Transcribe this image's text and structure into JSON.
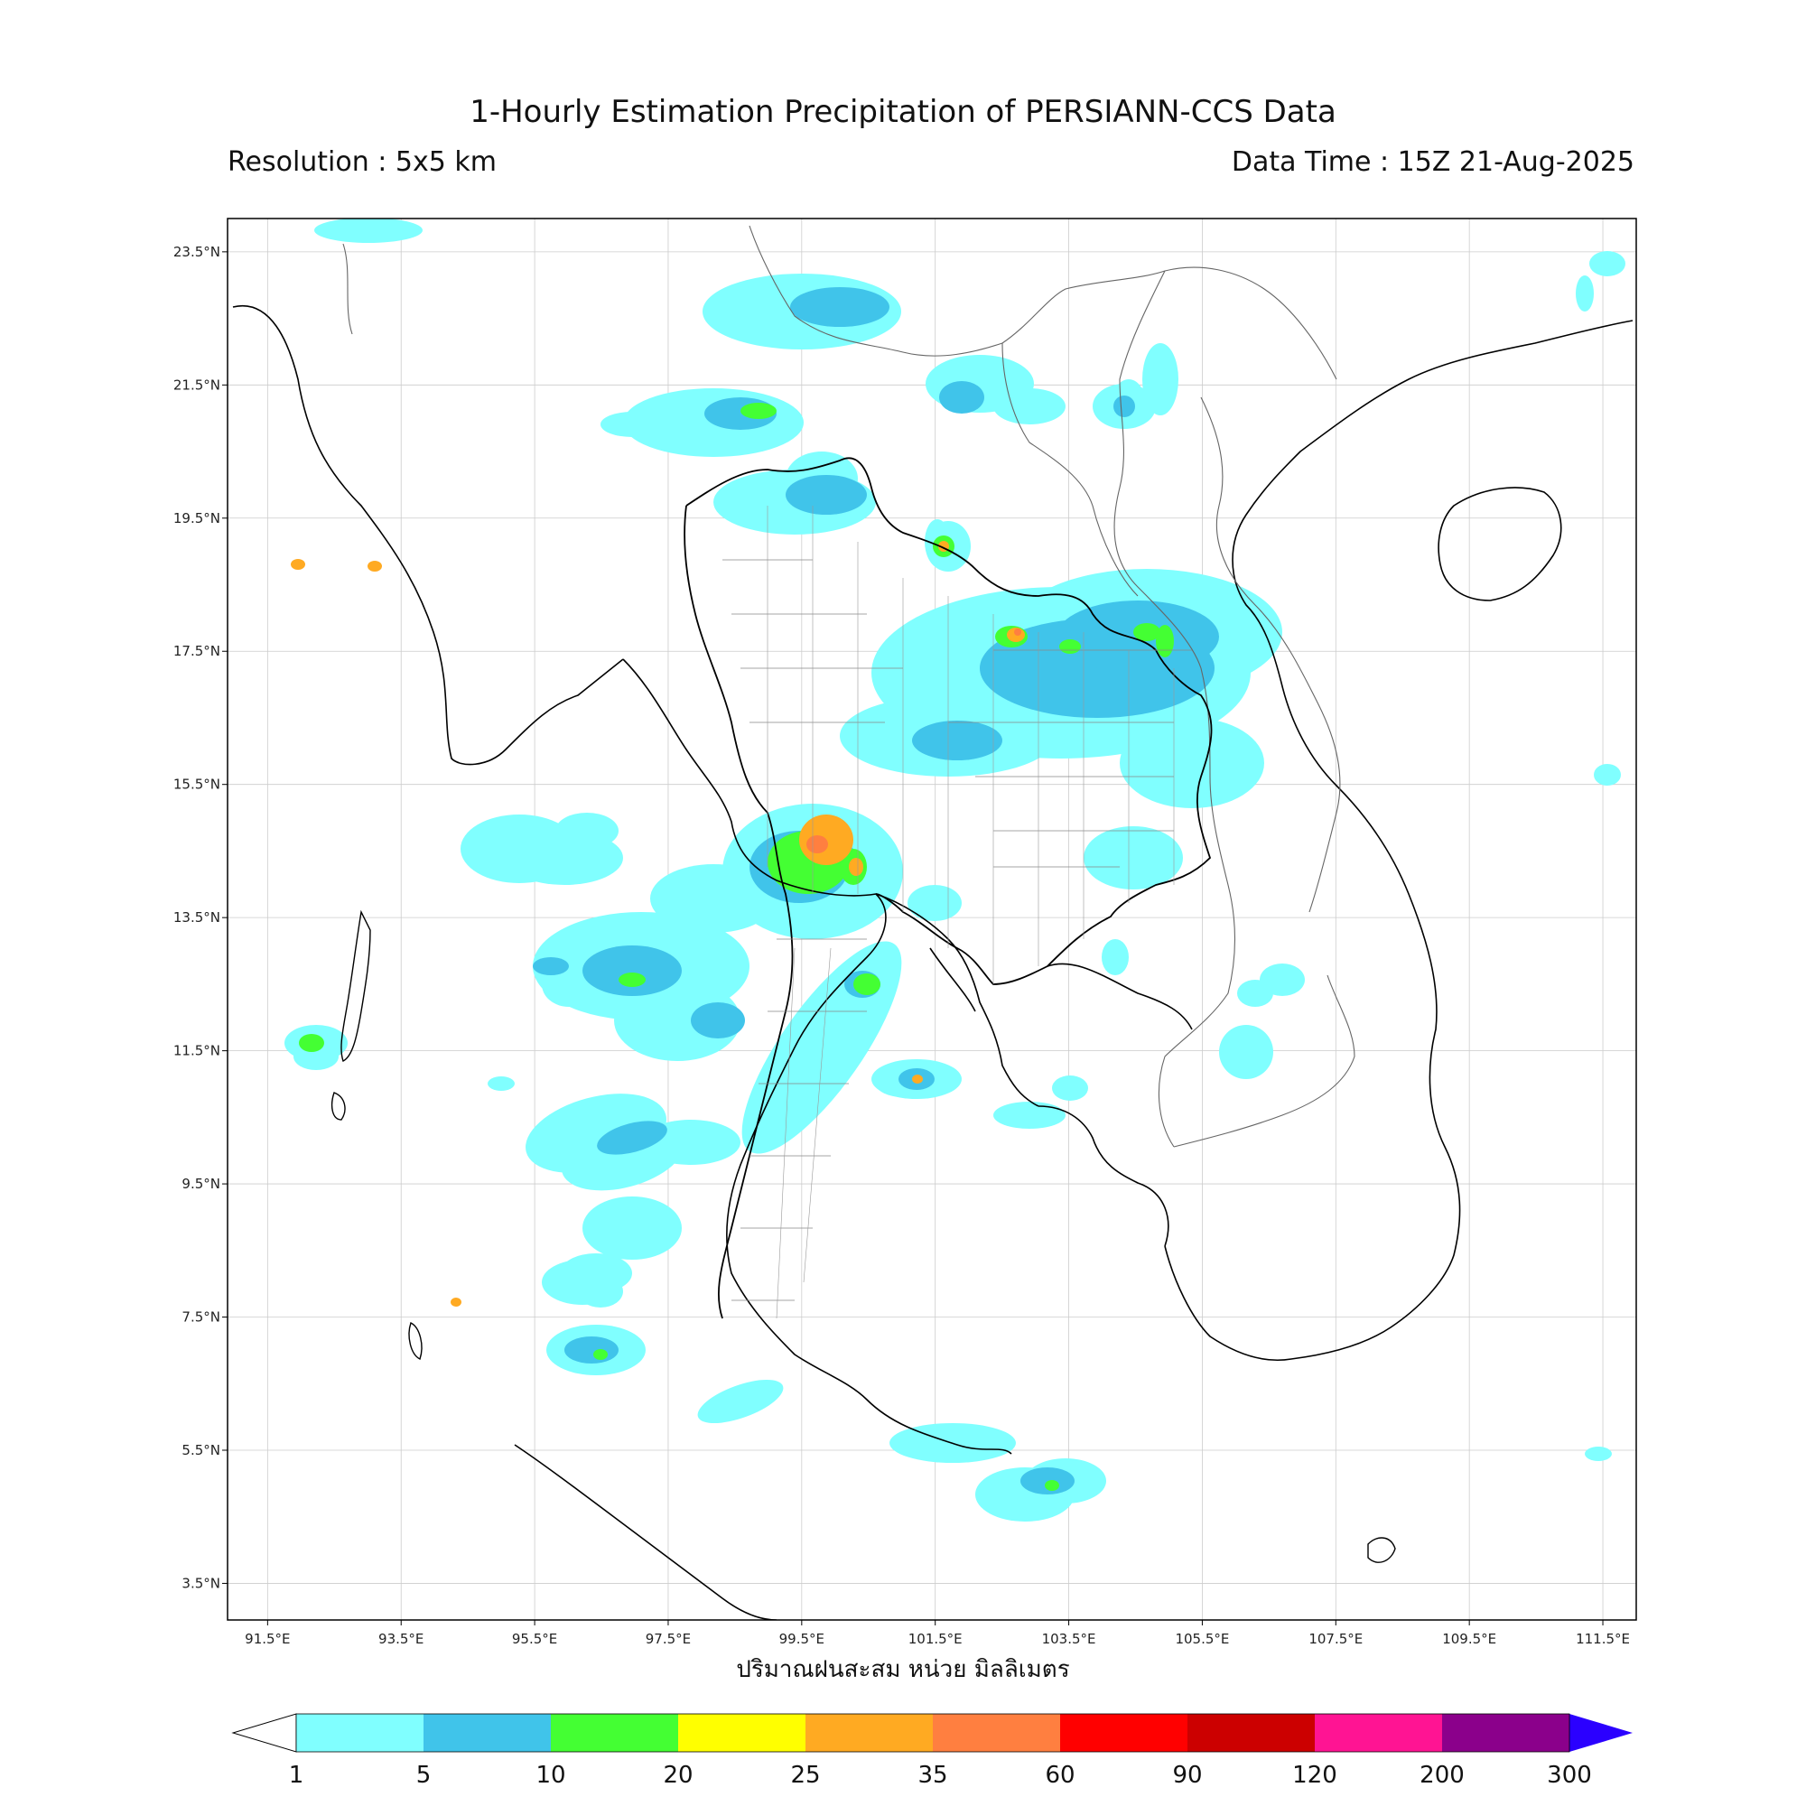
{
  "title": "1-Hourly Estimation Precipitation of PERSIANN-CCS Data",
  "resolution": "Resolution : 5x5 km",
  "data_time": "Data Time : 15Z 21-Aug-2025",
  "unit_label": "ปริมาณฝนสะสม หน่วย มิลลิเมตร",
  "map": {
    "lon_range": [
      90.9,
      112.0
    ],
    "lat_range": [
      2.95,
      24.0
    ],
    "lon_ticks": [
      "91.5°E",
      "93.5°E",
      "95.5°E",
      "97.5°E",
      "99.5°E",
      "101.5°E",
      "103.5°E",
      "105.5°E",
      "107.5°E",
      "109.5°E",
      "111.5°E"
    ],
    "lat_ticks": [
      "23.5°N",
      "21.5°N",
      "19.5°N",
      "17.5°N",
      "15.5°N",
      "13.5°N",
      "11.5°N",
      "9.5°N",
      "7.5°N",
      "5.5°N",
      "3.5°N"
    ]
  },
  "colorbar": {
    "labels": [
      "1",
      "5",
      "10",
      "20",
      "25",
      "35",
      "60",
      "90",
      "120",
      "200",
      "300"
    ],
    "colors": [
      "#80ffff",
      "#40c4ea",
      "#44ff33",
      "#ffff00",
      "#ffaa22",
      "#ff7f40",
      "#ff0000",
      "#cc0000",
      "#ff1493",
      "#8b008b"
    ],
    "extend_low": "#ffffff",
    "extend_high": "#2b00ff"
  }
}
